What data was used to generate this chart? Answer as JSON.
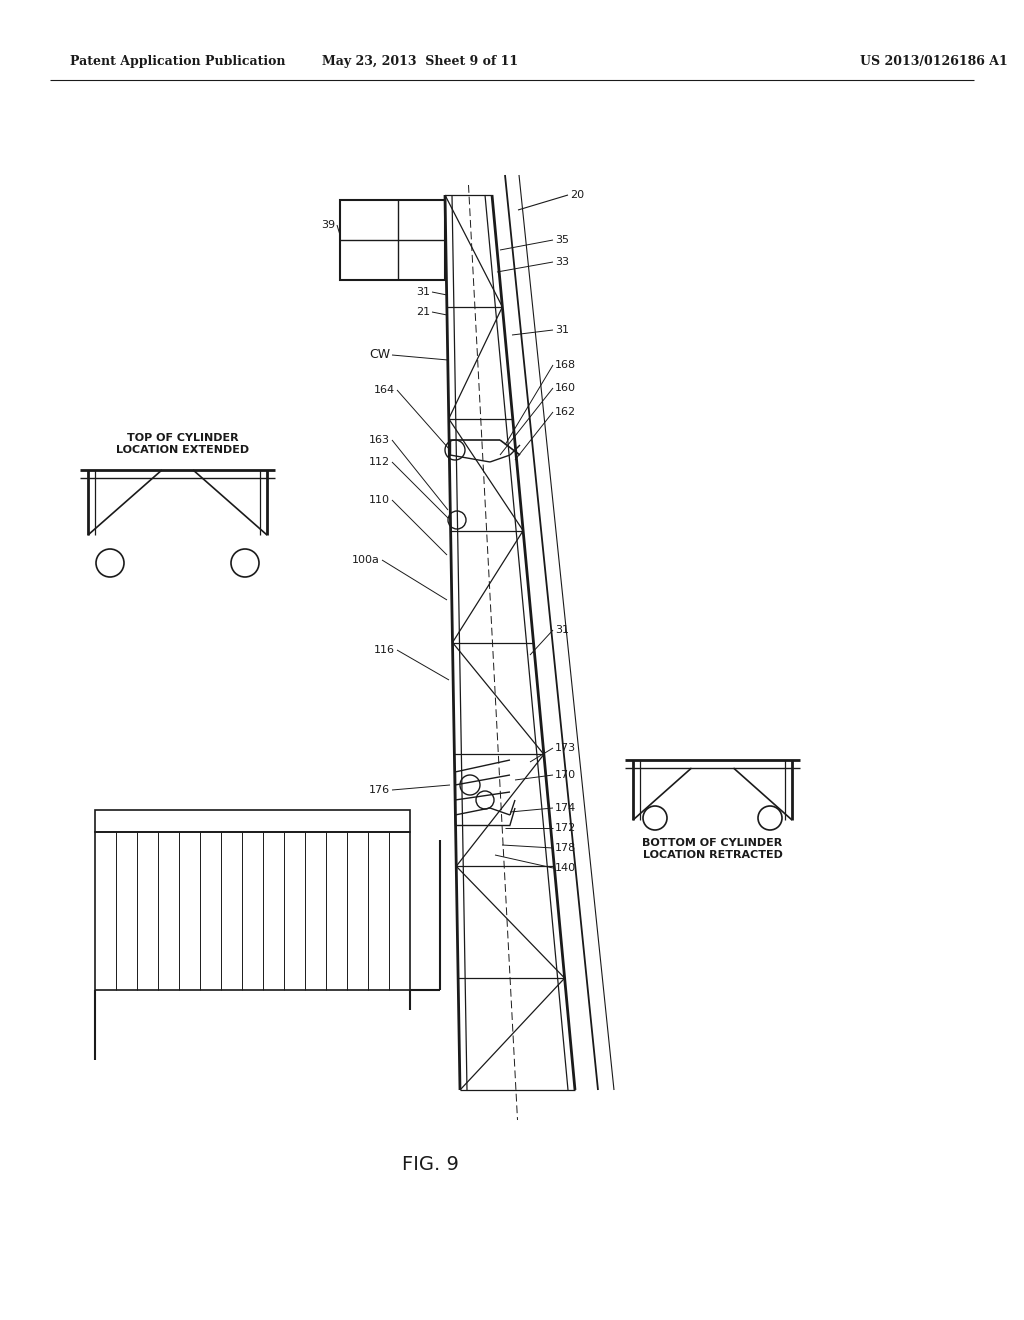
{
  "bg_color": "#ffffff",
  "line_color": "#1a1a1a",
  "header_left": "Patent Application Publication",
  "header_mid": "May 23, 2013  Sheet 9 of 11",
  "header_right": "US 2013/0126186 A1",
  "fig_label": "FIG. 9",
  "top_cylinder_label": "TOP OF CYLINDER\nLOCATION EXTENDED",
  "bottom_cylinder_label": "BOTTOM OF CYLINDER\nLOCATION RETRACTED"
}
